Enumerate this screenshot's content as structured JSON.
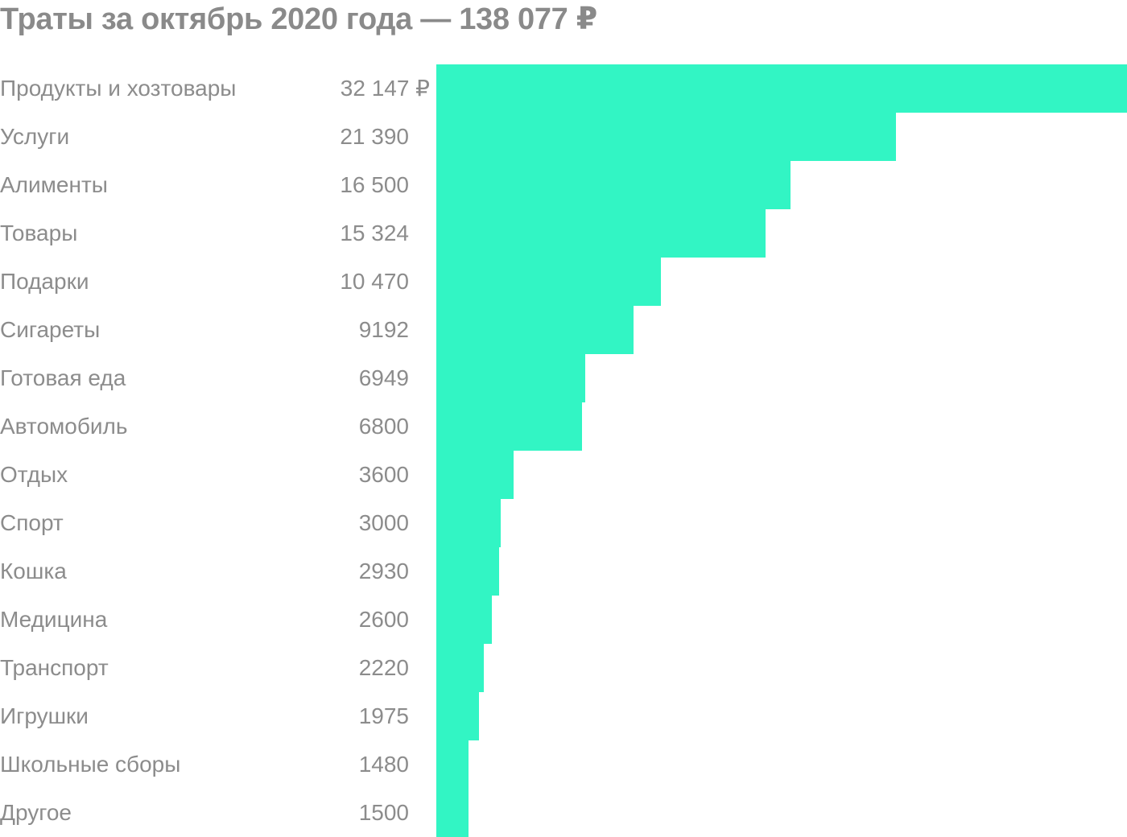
{
  "title": "Траты за октябрь 2020 года — 138 077 ₽",
  "chart_data": {
    "type": "bar",
    "orientation": "horizontal",
    "title": "Траты за октябрь 2020 года — 138 077 ₽",
    "categories": [
      "Продукты и хозтовары",
      "Услуги",
      "Алименты",
      "Товары",
      "Подарки",
      "Сигареты",
      "Готовая еда",
      "Автомобиль",
      "Отдых",
      "Спорт",
      "Кошка",
      "Медицина",
      "Транспорт",
      "Игрушки",
      "Школьные сборы",
      "Другое"
    ],
    "values": [
      32147,
      21390,
      16500,
      15324,
      10470,
      9192,
      6949,
      6800,
      3600,
      3000,
      2930,
      2600,
      2220,
      1975,
      1480,
      1500
    ],
    "value_labels": [
      "32 147 ₽",
      "21 390",
      "16 500",
      "15 324",
      "10 470",
      "9192",
      "6949",
      "6800",
      "3600",
      "3000",
      "2930",
      "2600",
      "2220",
      "1975",
      "1480",
      "1500"
    ],
    "xlim": [
      0,
      32147
    ],
    "grid": false,
    "bar_color": "#32f5c4"
  }
}
